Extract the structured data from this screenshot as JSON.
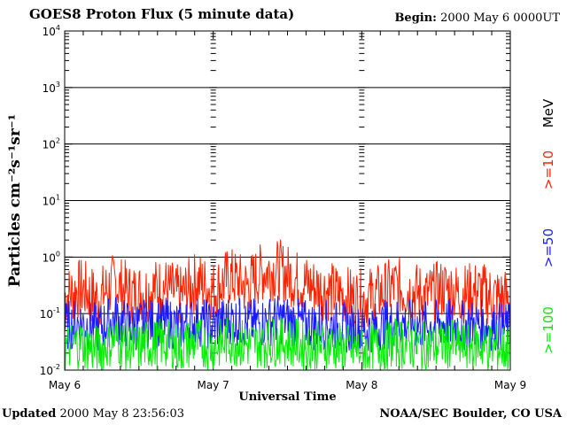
{
  "header": {
    "title": "GOES8 Proton Flux (5 minute data)",
    "begin_label": "Begin:",
    "begin_value": "2000 May 6 0000UT"
  },
  "footer": {
    "updated_label": "Updated",
    "updated_value": "2000 May  8 23:56:03",
    "credit": "NOAA/SEC Boulder, CO USA"
  },
  "colors": {
    "ge10": "#ff2200",
    "ge50": "#1a1aff",
    "ge100": "#00ee00",
    "axis": "#000000"
  },
  "chart_data": {
    "type": "line",
    "xlabel": "Universal Time",
    "ylabel": "Particles cm⁻²s⁻¹sr⁻¹",
    "y_scale": "log",
    "ylim": [
      0.01,
      10000
    ],
    "xlim": [
      "2000-05-06 00:00",
      "2000-05-09 00:00"
    ],
    "x_ticks": [
      "May 6",
      "May 7",
      "May 8",
      "May 9"
    ],
    "y_ticks": [
      {
        "base": "10",
        "exp": "-2"
      },
      {
        "base": "10",
        "exp": "-1"
      },
      {
        "base": "10",
        "exp": "0"
      },
      {
        "base": "10",
        "exp": "1"
      },
      {
        "base": "10",
        "exp": "2"
      },
      {
        "base": "10",
        "exp": "3"
      },
      {
        "base": "10",
        "exp": "4"
      }
    ],
    "unit_label": "MeV",
    "series": [
      {
        "name": ">=10",
        "color": "#ff2200",
        "values": [
          0.2,
          0.28,
          0.18,
          0.35,
          0.22,
          0.25,
          0.3,
          0.2,
          0.38,
          0.25,
          0.45,
          0.3,
          0.55,
          0.6,
          0.4,
          0.3,
          0.25,
          0.2,
          0.18,
          0.22,
          0.3,
          0.25,
          0.2,
          0.28,
          0.22,
          0.25,
          0.2,
          0.18
        ]
      },
      {
        "name": ">=50",
        "color": "#1a1aff",
        "values": [
          0.06,
          0.07,
          0.055,
          0.08,
          0.06,
          0.065,
          0.07,
          0.06,
          0.075,
          0.06,
          0.08,
          0.065,
          0.07,
          0.08,
          0.07,
          0.06,
          0.065,
          0.055,
          0.05,
          0.06,
          0.07,
          0.065,
          0.06,
          0.07,
          0.06,
          0.065,
          0.06,
          0.055
        ]
      },
      {
        "name": ">=100",
        "color": "#00ee00",
        "values": [
          0.025,
          0.03,
          0.022,
          0.035,
          0.025,
          0.028,
          0.03,
          0.025,
          0.032,
          0.026,
          0.034,
          0.028,
          0.03,
          0.033,
          0.03,
          0.026,
          0.028,
          0.024,
          0.022,
          0.026,
          0.03,
          0.028,
          0.025,
          0.03,
          0.026,
          0.028,
          0.025,
          0.024
        ]
      }
    ],
    "grid": true
  }
}
